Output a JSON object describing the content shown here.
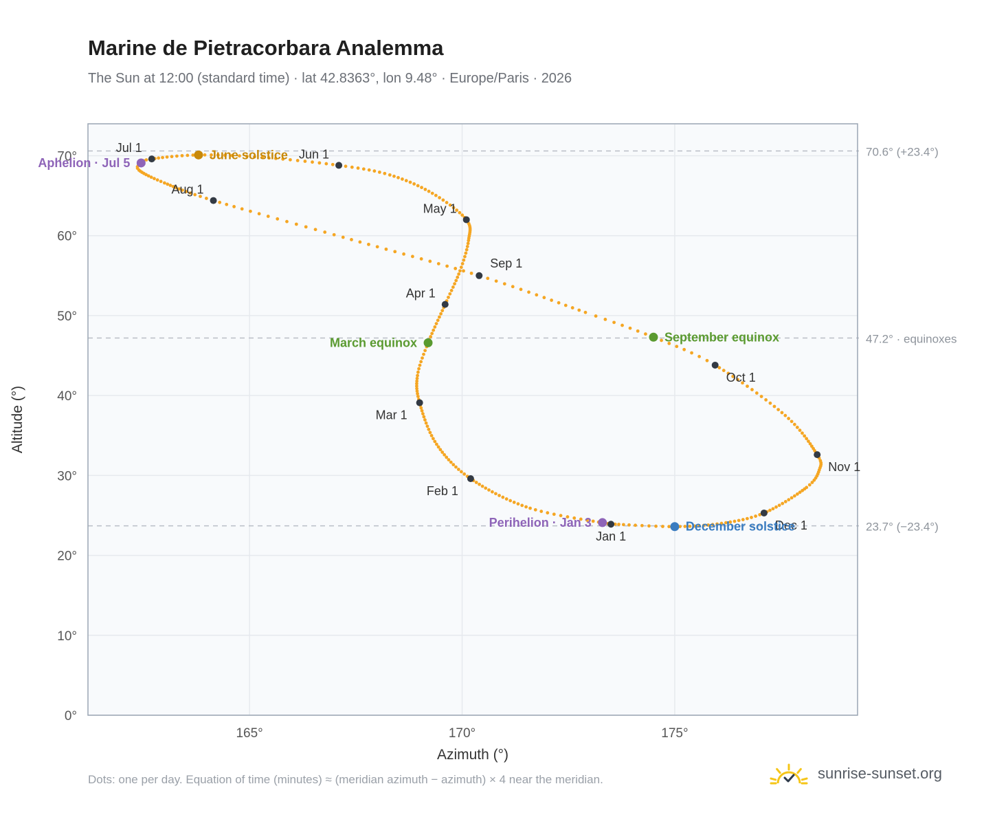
{
  "title": "Marine de Pietracorbara Analemma",
  "subtitle": "The Sun at 12:00 (standard time) · lat 42.8363°, lon 9.48° · Europe/Paris · 2026",
  "footnote": "Dots: one per day. Equation of time (minutes) ≈ (meridian azimuth − azimuth) × 4 near the meridian.",
  "brand": {
    "text": "sunrise-sunset.org",
    "icon": "sun-icon",
    "icon_color": "#f5c518"
  },
  "colors": {
    "curve": "#f5a623",
    "month_marker": "#333a44",
    "solstice_june": "#c8890a",
    "solstice_december": "#3a7cc0",
    "equinox": "#5a9a30",
    "apsis": "#8e64b8",
    "grid": "#e6e9ee",
    "plot_bg": "#f8fafc",
    "axis_frame": "#9aa5b4",
    "reference_line": "#b9bec6"
  },
  "chart_data": {
    "type": "scatter",
    "xlabel": "Azimuth (°)",
    "ylabel": "Altitude (°)",
    "xlim": [
      161.2,
      179.3
    ],
    "ylim": [
      0,
      74
    ],
    "xticks": [
      {
        "value": 165,
        "label": "165°"
      },
      {
        "value": 170,
        "label": "170°"
      },
      {
        "value": 175,
        "label": "175°"
      }
    ],
    "yticks": [
      {
        "value": 0,
        "label": "0°"
      },
      {
        "value": 10,
        "label": "10°"
      },
      {
        "value": 20,
        "label": "20°"
      },
      {
        "value": 30,
        "label": "30°"
      },
      {
        "value": 40,
        "label": "40°"
      },
      {
        "value": 50,
        "label": "50°"
      },
      {
        "value": 60,
        "label": "60°"
      },
      {
        "value": 70,
        "label": "70°"
      }
    ],
    "grid": true,
    "reference_lines": [
      {
        "y": 70.6,
        "label": "70.6° (+23.4°)"
      },
      {
        "y": 47.2,
        "label": "47.2° · equinoxes"
      },
      {
        "y": 23.7,
        "label": "23.7° (−23.4°)"
      }
    ],
    "daily_path": [
      {
        "doy": 1,
        "az": 173.5,
        "alt": 23.9
      },
      {
        "doy": 15,
        "az": 171.6,
        "alt": 25.9
      },
      {
        "doy": 32,
        "az": 170.2,
        "alt": 29.6
      },
      {
        "doy": 46,
        "az": 169.4,
        "alt": 33.9
      },
      {
        "doy": 60,
        "az": 169.0,
        "alt": 39.1
      },
      {
        "doy": 70,
        "az": 168.95,
        "alt": 42.5
      },
      {
        "doy": 79,
        "az": 169.2,
        "alt": 46.6
      },
      {
        "doy": 91,
        "az": 169.6,
        "alt": 51.4
      },
      {
        "doy": 101,
        "az": 169.95,
        "alt": 55.6
      },
      {
        "doy": 110,
        "az": 170.15,
        "alt": 59.4
      },
      {
        "doy": 121,
        "az": 170.1,
        "alt": 62.0
      },
      {
        "doy": 132,
        "az": 169.3,
        "alt": 65.3
      },
      {
        "doy": 143,
        "az": 168.3,
        "alt": 67.6
      },
      {
        "doy": 152,
        "az": 167.1,
        "alt": 68.8
      },
      {
        "doy": 163,
        "az": 165.3,
        "alt": 69.8
      },
      {
        "doy": 172,
        "az": 163.8,
        "alt": 70.1
      },
      {
        "doy": 182,
        "az": 162.7,
        "alt": 69.6
      },
      {
        "doy": 186,
        "az": 162.45,
        "alt": 69.1
      },
      {
        "doy": 191,
        "az": 162.4,
        "alt": 68.2
      },
      {
        "doy": 201,
        "az": 163.0,
        "alt": 66.6
      },
      {
        "doy": 213,
        "az": 164.15,
        "alt": 64.4
      },
      {
        "doy": 228,
        "az": 167.2,
        "alt": 59.8
      },
      {
        "doy": 244,
        "az": 170.4,
        "alt": 55.0
      },
      {
        "doy": 258,
        "az": 172.9,
        "alt": 50.4
      },
      {
        "doy": 266,
        "az": 174.5,
        "alt": 47.3
      },
      {
        "doy": 274,
        "az": 175.95,
        "alt": 43.8
      },
      {
        "doy": 290,
        "az": 177.6,
        "alt": 37.5
      },
      {
        "doy": 305,
        "az": 178.35,
        "alt": 32.6
      },
      {
        "doy": 312,
        "az": 178.4,
        "alt": 30.7
      },
      {
        "doy": 320,
        "az": 178.1,
        "alt": 28.5
      },
      {
        "doy": 335,
        "az": 177.1,
        "alt": 25.3
      },
      {
        "doy": 345,
        "az": 176.1,
        "alt": 24.0
      },
      {
        "doy": 355,
        "az": 175.0,
        "alt": 23.6
      },
      {
        "doy": 365,
        "az": 173.6,
        "alt": 23.9
      }
    ],
    "month_markers": [
      {
        "label": "Jan 1",
        "az": 173.5,
        "alt": 23.9,
        "label_pos": "below"
      },
      {
        "label": "Feb 1",
        "az": 170.2,
        "alt": 29.6,
        "label_pos": "below-left"
      },
      {
        "label": "Mar 1",
        "az": 169.0,
        "alt": 39.1,
        "label_pos": "below-left"
      },
      {
        "label": "Apr 1",
        "az": 169.6,
        "alt": 51.4,
        "label_pos": "above-left"
      },
      {
        "label": "May 1",
        "az": 170.1,
        "alt": 62.0,
        "label_pos": "above-left"
      },
      {
        "label": "Jun 1",
        "az": 167.1,
        "alt": 68.8,
        "label_pos": "above-left"
      },
      {
        "label": "Jul 1",
        "az": 162.7,
        "alt": 69.6,
        "label_pos": "above-left"
      },
      {
        "label": "Aug 1",
        "az": 164.15,
        "alt": 64.4,
        "label_pos": "above-left"
      },
      {
        "label": "Sep 1",
        "az": 170.4,
        "alt": 55.0,
        "label_pos": "above-right"
      },
      {
        "label": "Oct 1",
        "az": 175.95,
        "alt": 43.8,
        "label_pos": "below-right"
      },
      {
        "label": "Nov 1",
        "az": 178.35,
        "alt": 32.6,
        "label_pos": "below-right"
      },
      {
        "label": "Dec 1",
        "az": 177.1,
        "alt": 25.3,
        "label_pos": "below-right"
      }
    ],
    "events": [
      {
        "label": "June solstice",
        "az": 163.8,
        "alt": 70.1,
        "kind": "solstice_june",
        "label_pos": "right"
      },
      {
        "label": "December solstice",
        "az": 175.0,
        "alt": 23.6,
        "kind": "solstice_december",
        "label_pos": "right"
      },
      {
        "label": "March equinox",
        "az": 169.2,
        "alt": 46.6,
        "kind": "equinox",
        "label_pos": "left"
      },
      {
        "label": "September equinox",
        "az": 174.5,
        "alt": 47.3,
        "kind": "equinox",
        "label_pos": "right"
      },
      {
        "label": "Aphelion · Jul 5",
        "az": 162.45,
        "alt": 69.1,
        "kind": "apsis",
        "label_pos": "left"
      },
      {
        "label": "Perihelion · Jan 3",
        "az": 173.3,
        "alt": 24.1,
        "kind": "apsis",
        "label_pos": "left"
      }
    ]
  }
}
